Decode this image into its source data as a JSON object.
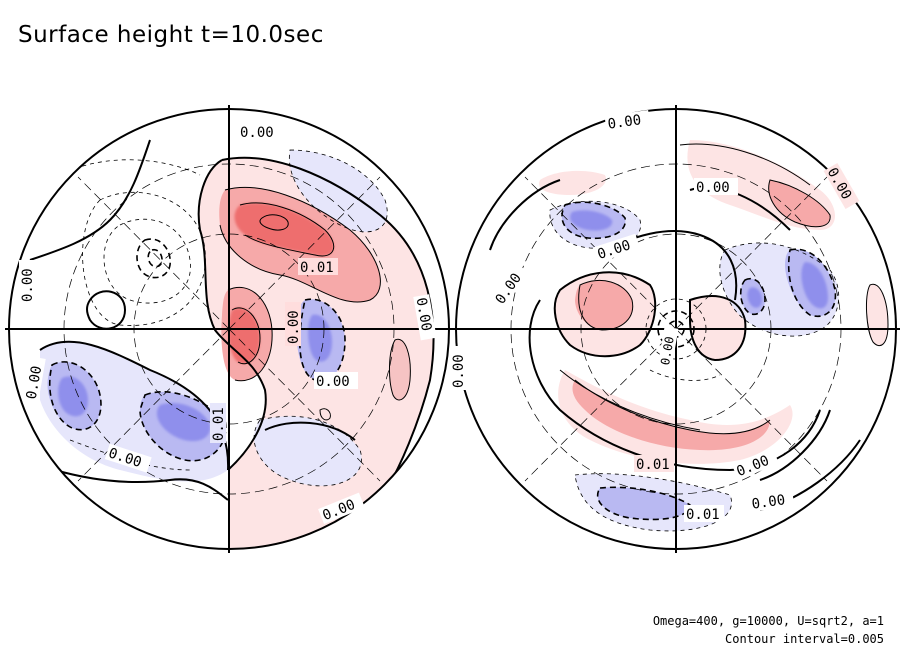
{
  "title": "Surface height t=10.0sec",
  "params": "Omega=400, g=10000, U=sqrt2, a=1",
  "contour_interval": "Contour interval=0.005",
  "contour_labels": {
    "left_hemisphere": [
      "0.00",
      "0.00",
      "0.01",
      "0.00",
      "0.00",
      "0.00",
      "0.00",
      "0.01",
      "0.00",
      "0.00"
    ],
    "right_hemisphere": [
      "0.00",
      "0.00",
      "0.00",
      "0.00",
      "0.00",
      "0.00",
      "0.00",
      "0.01",
      "0.00",
      "0.01",
      "0.00"
    ]
  },
  "colors": {
    "positive": "#e86060",
    "negative": "#6a6ae8",
    "line": "#000000"
  }
}
